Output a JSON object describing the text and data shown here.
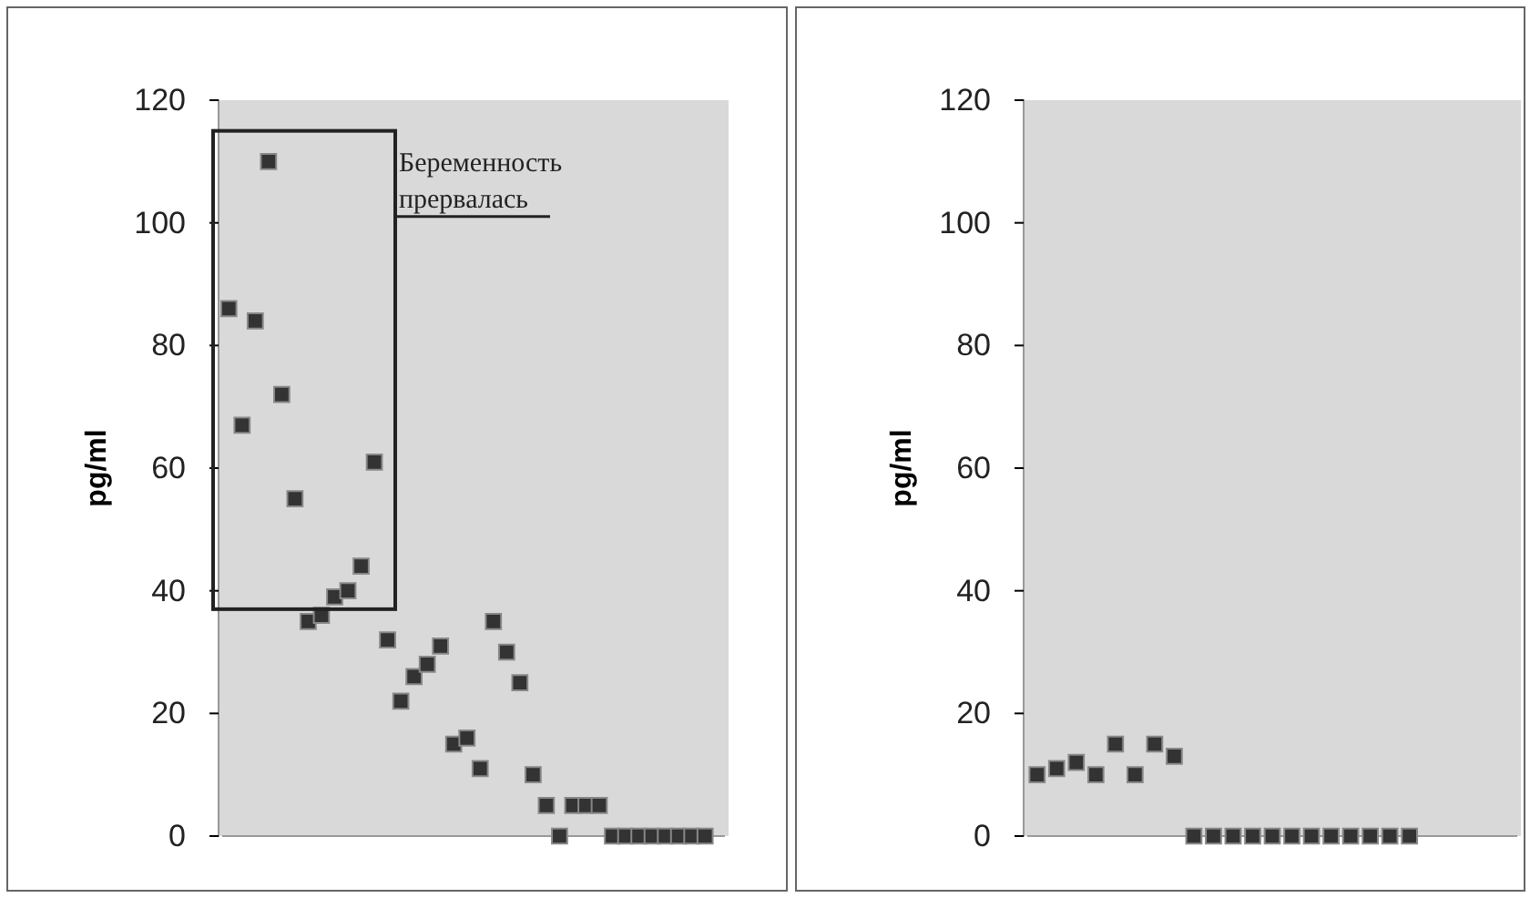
{
  "chart_data": [
    {
      "type": "scatter",
      "ylabel": "pg/ml",
      "categories": [
        null,
        null,
        null,
        null,
        null,
        null,
        null,
        null,
        null,
        null,
        null,
        null,
        null,
        null,
        null,
        null,
        null,
        null,
        null,
        null,
        null,
        null,
        null,
        null,
        null,
        null,
        null,
        null,
        null,
        null,
        null,
        null,
        null,
        null,
        null,
        null,
        null,
        null
      ],
      "values": [
        86,
        67,
        84,
        110,
        72,
        55,
        35,
        36,
        39,
        40,
        44,
        61,
        32,
        22,
        26,
        28,
        31,
        15,
        16,
        11,
        35,
        30,
        25,
        10,
        5,
        0,
        5,
        5,
        5,
        0,
        0,
        0,
        0,
        0,
        0,
        0,
        0,
        null
      ],
      "color": "#333333",
      "marker": "square",
      "ylim": [
        0,
        120
      ],
      "yticks": [
        0,
        20,
        40,
        60,
        80,
        100,
        120
      ],
      "tick_labels": "y",
      "annotations": [
        "Беременность прервалась"
      ]
    },
    {
      "type": "scatter",
      "ylabel": "pg/ml",
      "categories": [
        null,
        null,
        null,
        null,
        null,
        null,
        null,
        null,
        null,
        null,
        null,
        null,
        null,
        null,
        null,
        null,
        null,
        null,
        null,
        null,
        null,
        null,
        null,
        null,
        null
      ],
      "values": [
        10,
        11,
        12,
        10,
        15,
        10,
        15,
        13,
        0,
        0,
        0,
        0,
        0,
        0,
        0,
        0,
        0,
        0,
        0,
        0,
        null,
        null,
        null,
        null,
        null
      ],
      "color": "#333333",
      "marker": "square",
      "ylim": [
        0,
        120
      ],
      "yticks": [
        0,
        20,
        40,
        60,
        80,
        100,
        120
      ],
      "tick_labels": "y"
    }
  ]
}
